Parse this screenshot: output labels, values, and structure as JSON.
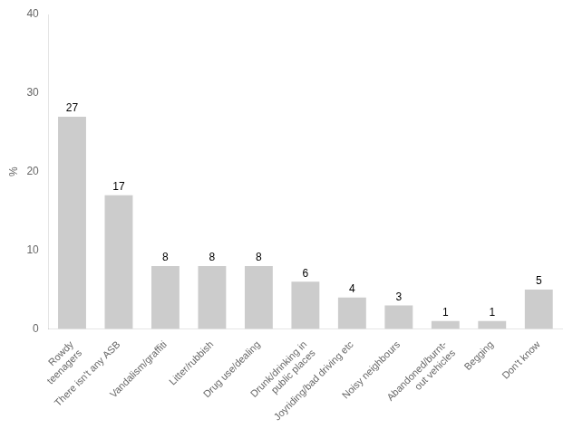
{
  "chart_data": {
    "type": "bar",
    "categories": [
      "Rowdy\nteenagers",
      "There isn't any ASB",
      "Vandalism/graffiti",
      "Litter/rubbish",
      "Drug use/dealing",
      "Drunk/drinking in\npublic places",
      "Joyriding/bad driving etc",
      "Noisy neighbours",
      "Abandoned/burnt-\nout vehicles",
      "Begging",
      "Don't know"
    ],
    "values": [
      27,
      17,
      8,
      8,
      8,
      6,
      4,
      3,
      1,
      1,
      5
    ],
    "color": "#cccccc",
    "ylabel": "%",
    "ylim": [
      0,
      40
    ],
    "yticks": [
      0,
      10,
      20,
      30,
      40
    ],
    "grid": false,
    "data_labels": true
  }
}
